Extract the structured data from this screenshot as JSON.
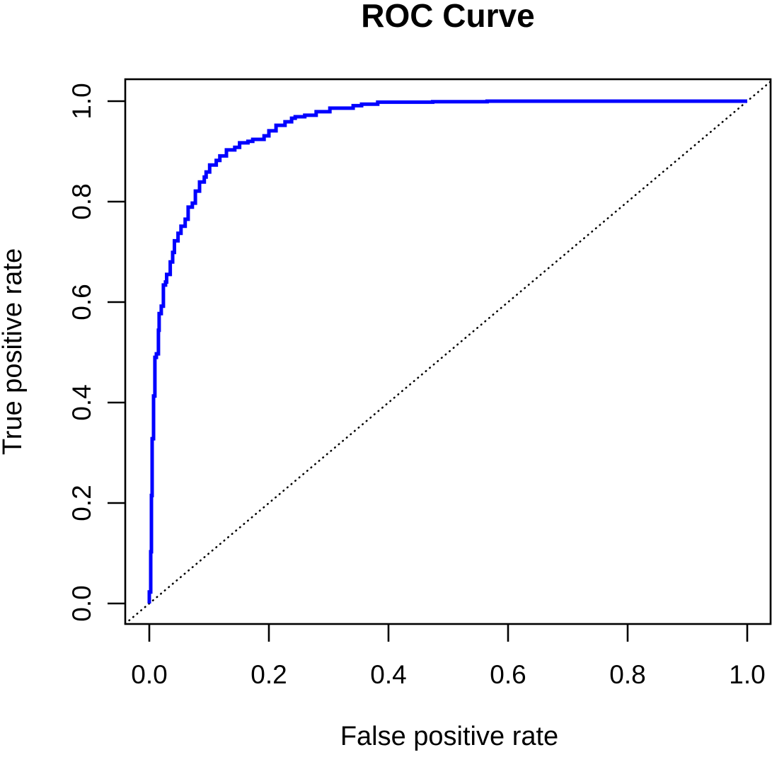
{
  "figure": {
    "background_color": "#ffffff",
    "frame_color": "#000000"
  },
  "chart_data": {
    "type": "line",
    "title": "ROC Curve",
    "xlabel": "False positive rate",
    "ylabel": "True positive rate",
    "xlim": [
      0,
      1
    ],
    "ylim": [
      0,
      1
    ],
    "grid": false,
    "legend": "none",
    "x_ticks": {
      "values": [
        0.0,
        0.2,
        0.4,
        0.6,
        0.8,
        1.0
      ],
      "labels": [
        "0.0",
        "0.2",
        "0.4",
        "0.6",
        "0.8",
        "1.0"
      ]
    },
    "y_ticks": {
      "values": [
        0.0,
        0.2,
        0.4,
        0.6,
        0.8,
        1.0
      ],
      "labels": [
        "0.0",
        "0.2",
        "0.4",
        "0.6",
        "0.8",
        "1.0"
      ]
    },
    "series": [
      {
        "name": "roc-curve",
        "color": "#0000ff",
        "line_width": 5,
        "line_style": "solid",
        "interpolation": "step-vertical-first",
        "x": [
          0.0,
          0.0024,
          0.0035,
          0.0047,
          0.0071,
          0.0094,
          0.0118,
          0.0153,
          0.0165,
          0.02,
          0.0235,
          0.0271,
          0.029,
          0.035,
          0.039,
          0.042,
          0.048,
          0.053,
          0.06,
          0.065,
          0.072,
          0.077,
          0.084,
          0.092,
          0.095,
          0.101,
          0.112,
          0.118,
          0.129,
          0.143,
          0.151,
          0.165,
          0.173,
          0.192,
          0.2,
          0.212,
          0.227,
          0.238,
          0.244,
          0.26,
          0.279,
          0.302,
          0.321,
          0.341,
          0.355,
          0.382,
          0.474,
          0.53,
          0.565,
          0.588,
          1.0
        ],
        "y": [
          0.0,
          0.023,
          0.103,
          0.215,
          0.328,
          0.413,
          0.49,
          0.497,
          0.544,
          0.577,
          0.592,
          0.634,
          0.64,
          0.655,
          0.68,
          0.699,
          0.722,
          0.737,
          0.751,
          0.765,
          0.789,
          0.797,
          0.821,
          0.839,
          0.849,
          0.859,
          0.873,
          0.882,
          0.891,
          0.903,
          0.908,
          0.917,
          0.92,
          0.924,
          0.931,
          0.941,
          0.952,
          0.959,
          0.966,
          0.969,
          0.972,
          0.979,
          0.986,
          0.986,
          0.991,
          0.994,
          0.998,
          0.999,
          0.999,
          1.0,
          1.0
        ]
      },
      {
        "name": "chance-diagonal",
        "color": "#000000",
        "line_width": 2.6,
        "line_style": "dotted",
        "x": [
          0,
          1
        ],
        "y": [
          0,
          1
        ]
      }
    ]
  }
}
